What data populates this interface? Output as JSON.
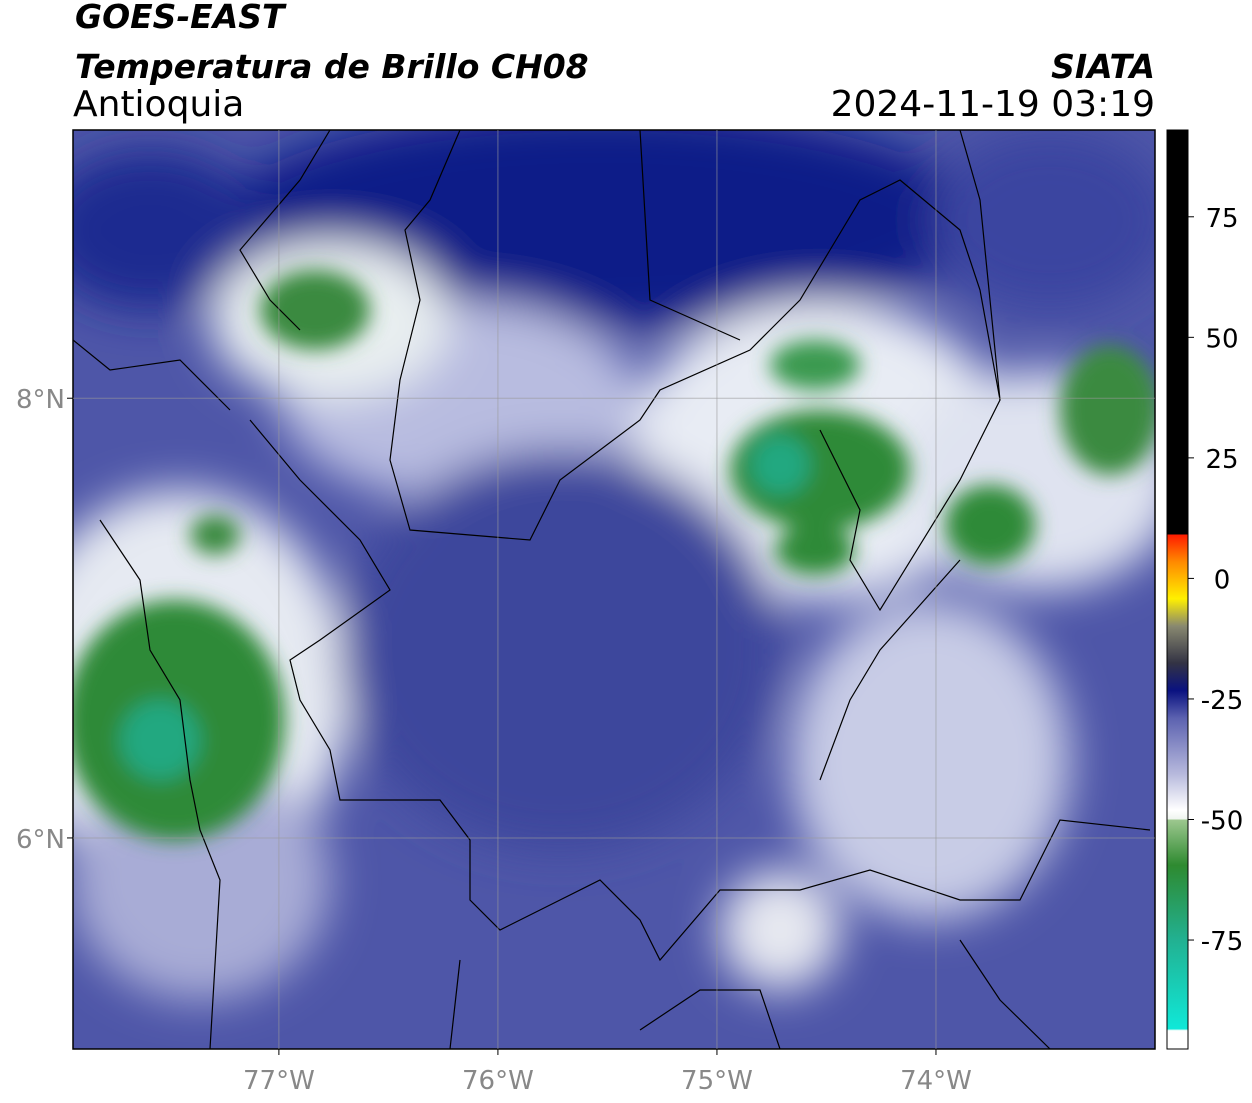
{
  "header": {
    "title": "GOES-EAST",
    "subtitle": "Temperatura de Brillo CH08",
    "region": "Antioquia",
    "source": "SIATA",
    "datetime": "2024-11-19 03:19"
  },
  "map": {
    "xlim": [
      -77.94,
      -73.0
    ],
    "ylim": [
      5.04,
      9.22
    ],
    "xticks": [
      {
        "value": -77,
        "label": "77°W"
      },
      {
        "value": -76,
        "label": "76°W"
      },
      {
        "value": -75,
        "label": "75°W"
      },
      {
        "value": -74,
        "label": "74°W"
      }
    ],
    "yticks": [
      {
        "value": 8,
        "label": "8°N"
      },
      {
        "value": 6,
        "label": "6°N"
      }
    ],
    "grid": true
  },
  "colorbar": {
    "lim": [
      -97.6,
      93
    ],
    "ticks": [
      75,
      50,
      25,
      0,
      -25,
      -50,
      -75
    ]
  }
}
